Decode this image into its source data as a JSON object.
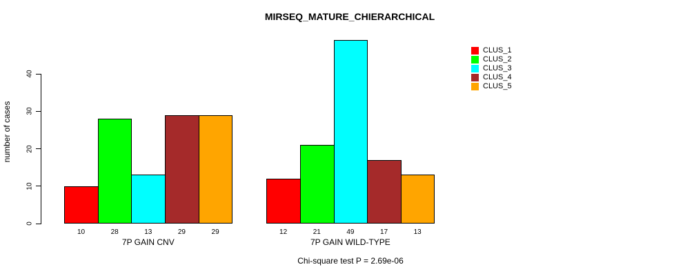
{
  "chart_data": {
    "type": "bar",
    "title": "MIRSEQ_MATURE_CHIERARCHICAL",
    "ylabel": "number of cases",
    "xlabel": "",
    "categories": [
      "7P GAIN CNV",
      "7P GAIN WILD-TYPE"
    ],
    "series": [
      {
        "name": "CLUS_1",
        "color": "#FF0000",
        "values": [
          10,
          12
        ]
      },
      {
        "name": "CLUS_2",
        "color": "#00FF00",
        "values": [
          28,
          21
        ]
      },
      {
        "name": "CLUS_3",
        "color": "#00FFFF",
        "values": [
          13,
          49
        ]
      },
      {
        "name": "CLUS_4",
        "color": "#A52A2A",
        "values": [
          29,
          17
        ]
      },
      {
        "name": "CLUS_5",
        "color": "#FFA500",
        "values": [
          29,
          13
        ]
      }
    ],
    "bar_value_labels": [
      [
        10,
        28,
        13,
        29,
        29
      ],
      [
        12,
        21,
        49,
        17,
        13
      ]
    ],
    "yticks": [
      0,
      10,
      20,
      30,
      40
    ],
    "ylim": [
      0,
      49
    ],
    "grid": false,
    "legend_position": "topright",
    "footnote": "Chi-square test P = 2.69e-06"
  }
}
